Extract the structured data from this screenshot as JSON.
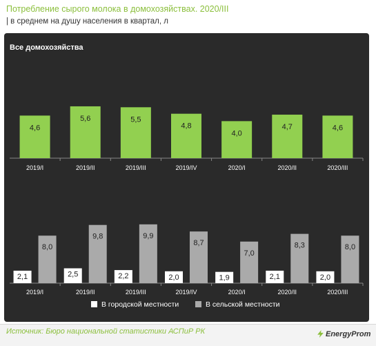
{
  "header": {
    "title": "Потребление сырого молока в домохозяйствах. 2020/III",
    "subtitle": "| в среднем  на душу населения в квартал, л"
  },
  "footer": {
    "source": "Источник: Бюро национальной  статистики АСПиР РК",
    "brand": "EnergyProm",
    "brand_icon": "lightning-icon"
  },
  "chart_data": [
    {
      "type": "bar",
      "title": "Все домохозяйства",
      "categories": [
        "2019/I",
        "2019/II",
        "2019/III",
        "2019/IV",
        "2020/I",
        "2020/II",
        "2020/III"
      ],
      "series": [
        {
          "values": [
            4.6,
            5.6,
            5.5,
            4.8,
            4.0,
            4.7,
            4.6
          ],
          "labels": [
            "4,6",
            "5,6",
            "5,5",
            "4,8",
            "4,0",
            "4,7",
            "4,6"
          ],
          "color": "#92d050"
        }
      ]
    },
    {
      "type": "bar",
      "categories": [
        "2019/I",
        "2019/II",
        "2019/III",
        "2019/IV",
        "2020/I",
        "2020/II",
        "2020/III"
      ],
      "legend_position": "bottom",
      "series": [
        {
          "name": "В городской местности",
          "values": [
            2.1,
            2.5,
            2.2,
            2.0,
            1.9,
            2.1,
            2.0
          ],
          "labels": [
            "2,1",
            "2,5",
            "2,2",
            "2,0",
            "1,9",
            "2,1",
            "2,0"
          ],
          "color": "#ffffff"
        },
        {
          "name": "В сельской местности",
          "values": [
            8.0,
            9.8,
            9.9,
            8.7,
            7.0,
            8.3,
            8.0
          ],
          "labels": [
            "8,0",
            "9,8",
            "9,9",
            "8,7",
            "7,0",
            "8,3",
            "8,0"
          ],
          "color": "#aaaaaa"
        }
      ]
    }
  ]
}
